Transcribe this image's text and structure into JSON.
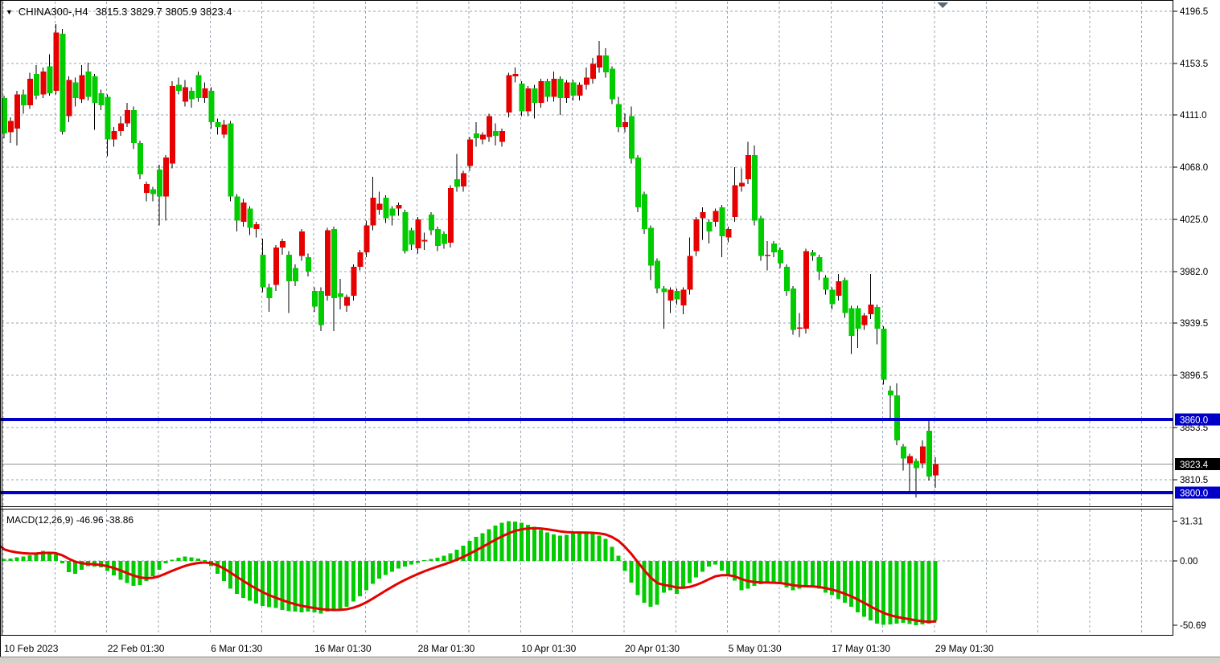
{
  "header": {
    "dropdown_icon": "▼",
    "instrument": "CHINA300-,H4",
    "ohlc_values": "3815.3 3829.7 3805.9 3823.4"
  },
  "indicator_label": "MACD(12,26,9) -46.96 -38.86",
  "price_axis": {
    "ticks": [
      {
        "label": "4196.5",
        "price": 4196.5
      },
      {
        "label": "4153.5",
        "price": 4153.5
      },
      {
        "label": "4111.0",
        "price": 4111.0
      },
      {
        "label": "4068.0",
        "price": 4068.0
      },
      {
        "label": "4025.0",
        "price": 4025.0
      },
      {
        "label": "3982.0",
        "price": 3982.0
      },
      {
        "label": "3939.5",
        "price": 3939.5
      },
      {
        "label": "3896.5",
        "price": 3896.5
      },
      {
        "label": "3853.5",
        "price": 3853.5
      },
      {
        "label": "3810.5",
        "price": 3810.5
      }
    ],
    "badges": [
      {
        "label": "3860.0",
        "price": 3860.0,
        "bg": "#0000C8",
        "fg": "#ffffff"
      },
      {
        "label": "3823.4",
        "price": 3823.4,
        "bg": "#000000",
        "fg": "#ffffff"
      },
      {
        "label": "3800.0",
        "price": 3800.0,
        "bg": "#0000C8",
        "fg": "#ffffff"
      }
    ]
  },
  "macd_axis": {
    "ticks": [
      {
        "label": "31.31",
        "value": 31.31
      },
      {
        "label": "0.00",
        "value": 0
      },
      {
        "label": "-50.69",
        "value": -50.69
      }
    ]
  },
  "time_axis": {
    "labels": [
      {
        "text": "10 Feb 2023",
        "grid_index": 0
      },
      {
        "text": "22 Feb 01:30",
        "grid_index": 2
      },
      {
        "text": "6 Mar 01:30",
        "grid_index": 4
      },
      {
        "text": "16 Mar 01:30",
        "grid_index": 6
      },
      {
        "text": "28 Mar 01:30",
        "grid_index": 8
      },
      {
        "text": "10 Apr 01:30",
        "grid_index": 10
      },
      {
        "text": "20 Apr 01:30",
        "grid_index": 12
      },
      {
        "text": "5 May 01:30",
        "grid_index": 14
      },
      {
        "text": "17 May 01:30",
        "grid_index": 16
      },
      {
        "text": "29 May 01:30",
        "grid_index": 18
      }
    ]
  },
  "levels": [
    {
      "price": 3860.0,
      "color": "#0000C8"
    },
    {
      "price": 3800.0,
      "color": "#0000C8"
    }
  ],
  "current_price": {
    "value": 3823.4,
    "line_color": "#909090"
  },
  "scroll_marker_color": "#5b6b7c",
  "colors": {
    "up": "#e60000",
    "down": "#00cc00",
    "macd_hist": "#00cc00",
    "macd_signal": "#e60000",
    "grid": "#9aa5b2",
    "bottom_strip": "#d6d2ca"
  },
  "chart_data": {
    "type": "candlestick",
    "symbol": "CHINA300-",
    "timeframe": "H4",
    "ohlc_display": {
      "open": "3815.3",
      "high": "3829.7",
      "low": "3805.9",
      "close": "3823.4"
    },
    "ylim": [
      3790,
      4205
    ],
    "note": "red candles = up (close>open), green candles = down",
    "candles": [
      [
        4125,
        4127,
        4092,
        4096
      ],
      [
        4097,
        4109,
        4088,
        4106
      ],
      [
        4100,
        4131,
        4086,
        4128
      ],
      [
        4128,
        4132,
        4112,
        4119
      ],
      [
        4119,
        4146,
        4116,
        4141
      ],
      [
        4145,
        4152,
        4124,
        4127
      ],
      [
        4128,
        4150,
        4125,
        4147
      ],
      [
        4151,
        4161,
        4127,
        4129
      ],
      [
        4131,
        4186,
        4128,
        4179
      ],
      [
        4178,
        4182,
        4095,
        4097
      ],
      [
        4110,
        4143,
        4105,
        4140
      ],
      [
        4138,
        4142,
        4118,
        4125
      ],
      [
        4124,
        4152,
        4121,
        4144
      ],
      [
        4147,
        4154,
        4123,
        4126
      ],
      [
        4143,
        4145,
        4099,
        4121
      ],
      [
        4129,
        4132,
        4115,
        4119
      ],
      [
        4126,
        4128,
        4077,
        4091
      ],
      [
        4091,
        4101,
        4085,
        4098
      ],
      [
        4098,
        4110,
        4094,
        4104
      ],
      [
        4104,
        4121,
        4101,
        4115
      ],
      [
        4115,
        4118,
        4083,
        4088
      ],
      [
        4088,
        4090,
        4058,
        4062
      ],
      [
        4047,
        4056,
        4040,
        4054
      ],
      [
        4050,
        4052,
        4040,
        4046
      ],
      [
        4066,
        4070,
        4020,
        4044
      ],
      [
        4044,
        4078,
        4024,
        4076
      ],
      [
        4071,
        4139,
        4067,
        4135
      ],
      [
        4136,
        4142,
        4128,
        4131
      ],
      [
        4122,
        4140,
        4118,
        4134
      ],
      [
        4131,
        4134,
        4117,
        4124
      ],
      [
        4144,
        4147,
        4122,
        4125
      ],
      [
        4125,
        4138,
        4121,
        4133
      ],
      [
        4131,
        4134,
        4100,
        4105
      ],
      [
        4105,
        4108,
        4095,
        4101
      ],
      [
        4095,
        4107,
        4092,
        4103
      ],
      [
        4104,
        4106,
        4040,
        4044
      ],
      [
        4044,
        4046,
        4015,
        4024
      ],
      [
        4023,
        4042,
        4019,
        4039
      ],
      [
        4034,
        4036,
        4012,
        4018
      ],
      [
        4017,
        4023,
        4010,
        4021
      ],
      [
        3996,
        4009,
        3965,
        3969
      ],
      [
        3969,
        3972,
        3949,
        3960
      ],
      [
        3971,
        4004,
        3966,
        4002
      ],
      [
        4002,
        4009,
        3996,
        4007
      ],
      [
        3996,
        3999,
        3948,
        3974
      ],
      [
        3985,
        3988,
        3970,
        3974
      ],
      [
        3995,
        4017,
        3991,
        4015
      ],
      [
        3994,
        3997,
        3978,
        3982
      ],
      [
        3966,
        3969,
        3949,
        3953
      ],
      [
        3966,
        3969,
        3933,
        3938
      ],
      [
        3962,
        4018,
        3958,
        4016
      ],
      [
        4017,
        4019,
        3933,
        3960
      ],
      [
        3964,
        3976,
        3951,
        3961
      ],
      [
        3954,
        3963,
        3949,
        3961
      ],
      [
        3962,
        3988,
        3958,
        3986
      ],
      [
        3986,
        4000,
        3983,
        3998
      ],
      [
        3998,
        4024,
        3994,
        4020
      ],
      [
        4020,
        4060,
        4016,
        4043
      ],
      [
        4033,
        4048,
        4029,
        4038
      ],
      [
        4043,
        4045,
        4022,
        4026
      ],
      [
        4034,
        4036,
        4020,
        4028
      ],
      [
        4034,
        4039,
        4028,
        4037
      ],
      [
        4031,
        4033,
        3997,
        3999
      ],
      [
        4016,
        4018,
        4000,
        4004
      ],
      [
        4001,
        4027,
        3997,
        4025
      ],
      [
        4008,
        4014,
        4000,
        4008
      ],
      [
        4029,
        4031,
        4012,
        4016
      ],
      [
        4017,
        4019,
        3999,
        4003
      ],
      [
        4013,
        4015,
        4001,
        4005
      ],
      [
        4006,
        4053,
        4002,
        4051
      ],
      [
        4058,
        4079,
        4048,
        4052
      ],
      [
        4052,
        4065,
        4048,
        4063
      ],
      [
        4069,
        4093,
        4065,
        4091
      ],
      [
        4096,
        4105,
        4085,
        4092
      ],
      [
        4091,
        4097,
        4087,
        4095
      ],
      [
        4093,
        4112,
        4089,
        4110
      ],
      [
        4098,
        4104,
        4086,
        4094
      ],
      [
        4089,
        4100,
        4085,
        4098
      ],
      [
        4113,
        4146,
        4109,
        4144
      ],
      [
        4143,
        4150,
        4138,
        4145
      ],
      [
        4137,
        4139,
        4110,
        4114
      ],
      [
        4114,
        4135,
        4110,
        4133
      ],
      [
        4133,
        4136,
        4108,
        4121
      ],
      [
        4121,
        4141,
        4117,
        4139
      ],
      [
        4139,
        4141,
        4122,
        4126
      ],
      [
        4126,
        4147,
        4122,
        4141
      ],
      [
        4141,
        4143,
        4111,
        4125
      ],
      [
        4125,
        4140,
        4121,
        4138
      ],
      [
        4138,
        4140,
        4123,
        4127
      ],
      [
        4127,
        4138,
        4123,
        4136
      ],
      [
        4136,
        4150,
        4132,
        4142
      ],
      [
        4141,
        4158,
        4137,
        4153
      ],
      [
        4150,
        4172,
        4146,
        4160
      ],
      [
        4160,
        4166,
        4142,
        4146
      ],
      [
        4149,
        4151,
        4120,
        4124
      ],
      [
        4120,
        4126,
        4097,
        4101
      ],
      [
        4101,
        4112,
        4097,
        4105
      ],
      [
        4110,
        4118,
        4071,
        4075
      ],
      [
        4076,
        4078,
        4031,
        4035
      ],
      [
        4046,
        4048,
        4013,
        4017
      ],
      [
        4018,
        4020,
        3975,
        3987
      ],
      [
        3991,
        3993,
        3964,
        3968
      ],
      [
        3968,
        3970,
        3935,
        3965
      ],
      [
        3958,
        3969,
        3948,
        3967
      ],
      [
        3966,
        3968,
        3955,
        3959
      ],
      [
        3954,
        3969,
        3947,
        3967
      ],
      [
        3967,
        4010,
        3963,
        3995
      ],
      [
        3999,
        4027,
        3995,
        4025
      ],
      [
        4026,
        4035,
        4008,
        4031
      ],
      [
        4023,
        4025,
        4005,
        4015
      ],
      [
        4023,
        4034,
        4019,
        4032
      ],
      [
        4035,
        4037,
        3994,
        4011
      ],
      [
        4010,
        4019,
        4006,
        4017
      ],
      [
        4027,
        4068,
        4023,
        4053
      ],
      [
        4052,
        4067,
        4048,
        4055
      ],
      [
        4058,
        4089,
        4054,
        4078
      ],
      [
        4078,
        4086,
        4020,
        4024
      ],
      [
        4026,
        4028,
        3991,
        3995
      ],
      [
        3996,
        4007,
        3983,
        3996
      ],
      [
        4005,
        4007,
        3994,
        3998
      ],
      [
        4000,
        4002,
        3985,
        3989
      ],
      [
        3986,
        3988,
        3962,
        3966
      ],
      [
        3968,
        3970,
        3930,
        3934
      ],
      [
        3935,
        3948,
        3928,
        3936
      ],
      [
        3935,
        4001,
        3931,
        3999
      ],
      [
        3998,
        4000,
        3991,
        3995
      ],
      [
        3994,
        3996,
        3975,
        3982
      ],
      [
        3977,
        3979,
        3963,
        3967
      ],
      [
        3967,
        3969,
        3951,
        3955
      ],
      [
        3962,
        3980,
        3958,
        3974
      ],
      [
        3975,
        3977,
        3944,
        3948
      ],
      [
        3952,
        3954,
        3914,
        3929
      ],
      [
        3952,
        3954,
        3919,
        3935
      ],
      [
        3938,
        3948,
        3934,
        3946
      ],
      [
        3947,
        3980,
        3943,
        3955
      ],
      [
        3953,
        3955,
        3922,
        3935
      ],
      [
        3935,
        3937,
        3889,
        3893
      ],
      [
        3884,
        3888,
        3860,
        3880
      ],
      [
        3880,
        3890,
        3839,
        3843
      ],
      [
        3838,
        3840,
        3818,
        3828
      ],
      [
        3824,
        3832,
        3799,
        3830
      ],
      [
        3826,
        3828,
        3796,
        3820
      ],
      [
        3824,
        3843,
        3820,
        3838
      ],
      [
        3851,
        3860,
        3810,
        3813
      ],
      [
        3814,
        3829,
        3804,
        3823.4
      ]
    ],
    "macd": {
      "params": "12,26,9",
      "main_last": -46.96,
      "signal_last": -38.86,
      "range": [
        -50.69,
        31.31
      ],
      "values": [
        1.5,
        2,
        3,
        3.5,
        4.5,
        6,
        8,
        7,
        5,
        -2,
        -9,
        -10,
        -7,
        -4,
        -4.5,
        -5,
        -8,
        -11.5,
        -15,
        -17.5,
        -19.5,
        -19,
        -16,
        -12,
        -7,
        -2,
        1,
        2.5,
        3.5,
        3,
        2,
        0.5,
        -4,
        -10,
        -16,
        -22,
        -26,
        -29,
        -31.5,
        -33.5,
        -35.5,
        -36.5,
        -37,
        -38.5,
        -39.5,
        -40,
        -40.5,
        -40,
        -40.5,
        -41.5,
        -40,
        -39.5,
        -38.5,
        -36,
        -32,
        -28,
        -23,
        -18,
        -14,
        -11,
        -8.5,
        -6,
        -4.5,
        -3,
        -1.5,
        0.5,
        1.5,
        2.5,
        4,
        6,
        9,
        12,
        16,
        19,
        22,
        25,
        28,
        30,
        31.31,
        31,
        30,
        28.5,
        27,
        24.5,
        22.5,
        21,
        20,
        20.5,
        21.5,
        22,
        22,
        21.5,
        20,
        17.5,
        11,
        4,
        -8,
        -17,
        -27,
        -33,
        -36,
        -34.5,
        -25,
        -23,
        -26,
        -22,
        -17.5,
        -13,
        -8.5,
        -4.5,
        -3,
        -7.5,
        -11.5,
        -15.5,
        -23,
        -22,
        -19.5,
        -18.5,
        -17.5,
        -17.5,
        -18.5,
        -21,
        -23,
        -22,
        -21,
        -21,
        -22,
        -25,
        -27,
        -30,
        -33,
        -36,
        -40.5,
        -44,
        -47,
        -49.5,
        -50.5,
        -50,
        -49.4,
        -48.8,
        -49.6,
        -50.69,
        -50.2,
        -49.3,
        -46.96
      ]
    }
  }
}
